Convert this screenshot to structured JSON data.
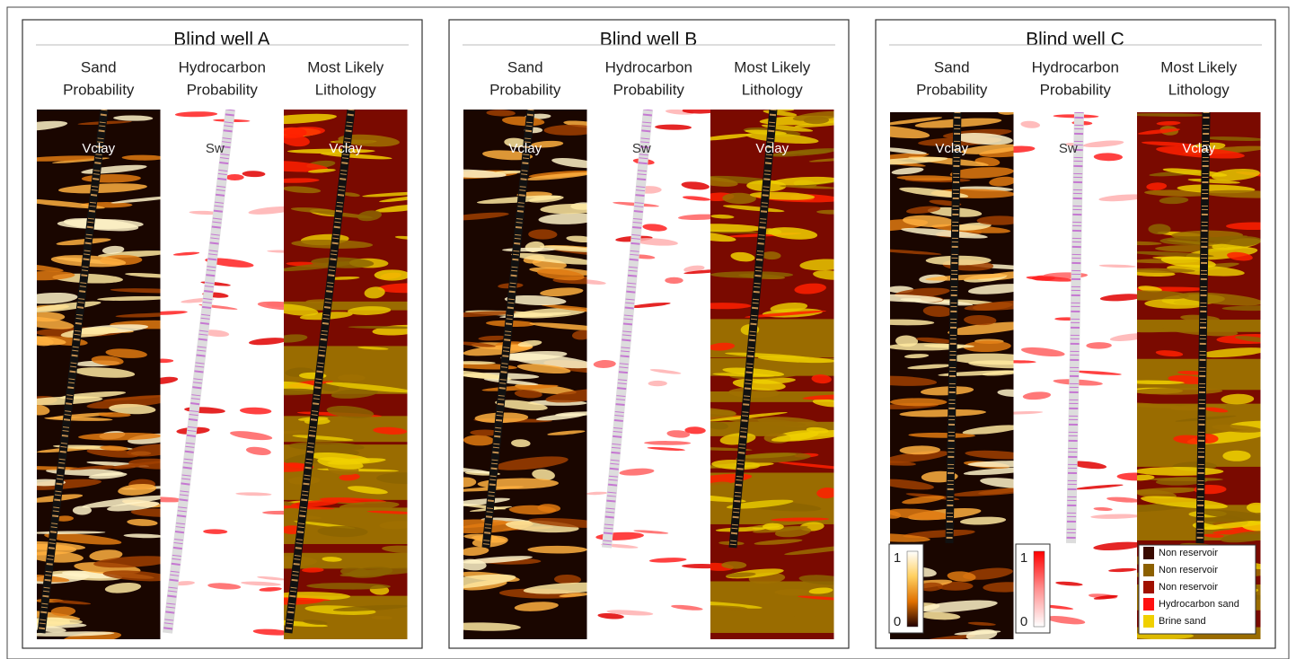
{
  "panels": [
    {
      "title": "Blind well A",
      "columns": [
        {
          "header": [
            "Sand",
            "Probability"
          ],
          "log": "Vclay"
        },
        {
          "header": [
            "Hydrocarbon",
            "Probability"
          ],
          "log": "Sw"
        },
        {
          "header": [
            "Most Likely",
            "Lithology"
          ],
          "log": "Vclay"
        }
      ]
    },
    {
      "title": "Blind well B",
      "columns": [
        {
          "header": [
            "Sand",
            "Probability"
          ],
          "log": "Vclay"
        },
        {
          "header": [
            "Hydrocarbon",
            "Probability"
          ],
          "log": "Sw"
        },
        {
          "header": [
            "Most Likely",
            "Lithology"
          ],
          "log": "Vclay"
        }
      ]
    },
    {
      "title": "Blind well C",
      "columns": [
        {
          "header": [
            "Sand",
            "Probability"
          ],
          "log": "Vclay"
        },
        {
          "header": [
            "Hydrocarbon",
            "Probability"
          ],
          "log": "Sw"
        },
        {
          "header": [
            "Most Likely",
            "Lithology"
          ],
          "log": "Vclay"
        }
      ]
    }
  ],
  "colorbars": [
    {
      "max": 1,
      "min": 0
    },
    {
      "max": 1,
      "min": 0
    }
  ],
  "legend": [
    "Non reservoir",
    "Non reservoir",
    "Non reservoir",
    "Hydrocarbon sand",
    "Brine sand"
  ]
}
